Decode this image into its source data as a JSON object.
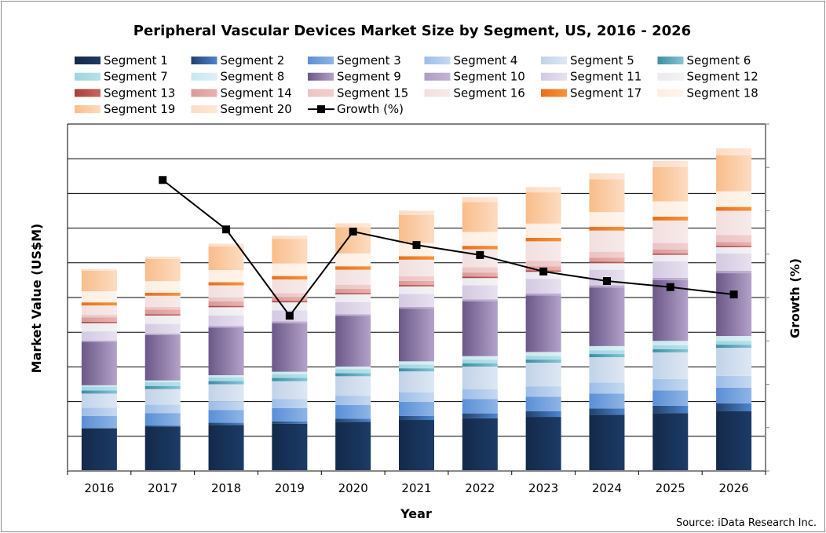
{
  "chart_data": {
    "type": "bar",
    "stacked": true,
    "title": "Peripheral Vascular Devices Market Size by Segment, US, 2016 - 2026",
    "xlabel": "Year",
    "ylabel": "Market Value (US$M)",
    "y2label": "Growth (%)",
    "source": "Source: iData Research Inc.",
    "ylim": [
      0,
      1000
    ],
    "y2lim": [
      0,
      8
    ],
    "y_tick_labels_shown": false,
    "grid": true,
    "legend_position": "top",
    "categories": [
      "2016",
      "2017",
      "2018",
      "2019",
      "2020",
      "2021",
      "2022",
      "2023",
      "2024",
      "2025",
      "2026"
    ],
    "series": [
      {
        "name": "Segment 1",
        "colors": [
          "#14294a",
          "#1c3b66"
        ],
        "values": [
          123,
          128,
          133,
          136,
          142,
          147,
          152,
          156,
          162,
          167,
          172
        ]
      },
      {
        "name": "Segment 2",
        "colors": [
          "#22416d",
          "#4d85cf"
        ],
        "values": [
          1,
          3,
          6,
          7,
          9,
          12,
          14,
          16,
          18,
          21,
          23
        ]
      },
      {
        "name": "Segment 3",
        "colors": [
          "#5a8fd6",
          "#8fb5e5"
        ],
        "values": [
          35,
          36,
          37,
          38,
          39,
          40,
          41,
          42,
          43,
          44,
          45
        ]
      },
      {
        "name": "Segment 4",
        "colors": [
          "#9cbde8",
          "#c6d9f1"
        ],
        "values": [
          23,
          24,
          25,
          26,
          27,
          28,
          29,
          30,
          32,
          33,
          34
        ]
      },
      {
        "name": "Segment 5",
        "colors": [
          "#c2d3e8",
          "#dee7f3"
        ],
        "values": [
          41,
          45,
          49,
          52,
          56,
          60,
          65,
          68,
          73,
          77,
          81
        ]
      },
      {
        "name": "Segment 6",
        "colors": [
          "#3b8da2",
          "#85c5d4"
        ],
        "values": [
          9,
          9,
          9,
          9,
          9,
          9,
          9,
          9,
          9,
          9,
          9
        ]
      },
      {
        "name": "Segment 7",
        "colors": [
          "#9fd4e0",
          "#b8e1e9"
        ],
        "values": [
          11,
          11,
          11,
          11,
          11,
          11,
          11,
          11,
          11,
          11,
          11
        ]
      },
      {
        "name": "Segment 8",
        "colors": [
          "#c8e8ef",
          "#dcf1f5"
        ],
        "values": [
          4,
          5,
          6,
          7,
          8,
          9,
          10,
          11,
          12,
          13,
          14
        ]
      },
      {
        "name": "Segment 9",
        "colors": [
          "#6b5887",
          "#b3a2c9"
        ],
        "values": [
          125,
          131,
          137,
          140,
          146,
          152,
          158,
          163,
          169,
          175,
          181
        ]
      },
      {
        "name": "Segment 10",
        "colors": [
          "#ad9cc5",
          "#c2b5d5"
        ],
        "values": [
          4,
          4,
          5,
          5,
          5,
          5,
          6,
          6,
          6,
          7,
          7
        ]
      },
      {
        "name": "Segment 11",
        "colors": [
          "#d4c9e1",
          "#e7e1ef"
        ],
        "values": [
          25,
          28,
          30,
          32,
          35,
          37,
          40,
          42,
          45,
          47,
          50
        ]
      },
      {
        "name": "Segment 12",
        "colors": [
          "#ebe9f1",
          "#f3f3f3"
        ],
        "values": [
          25,
          24,
          24,
          23,
          22,
          22,
          21,
          20,
          19,
          19,
          18
        ]
      },
      {
        "name": "Segment 13",
        "colors": [
          "#a8403f",
          "#c76461"
        ],
        "values": [
          4,
          4,
          4,
          4,
          4,
          4,
          4,
          4,
          4,
          4,
          4
        ]
      },
      {
        "name": "Segment 14",
        "colors": [
          "#d99a9a",
          "#e8b2b0"
        ],
        "values": [
          13,
          13,
          13,
          12,
          12,
          12,
          12,
          12,
          12,
          11,
          11
        ]
      },
      {
        "name": "Segment 15",
        "colors": [
          "#ebc3c3",
          "#f0d0cf"
        ],
        "values": [
          7,
          8,
          10,
          11,
          12,
          13,
          15,
          16,
          17,
          19,
          20
        ]
      },
      {
        "name": "Segment 16",
        "colors": [
          "#f2dfdf",
          "#f7eaea"
        ],
        "values": [
          27,
          32,
          36,
          39,
          43,
          48,
          52,
          56,
          61,
          65,
          70
        ]
      },
      {
        "name": "Segment 17",
        "colors": [
          "#e6701a",
          "#f7933a"
        ],
        "values": [
          9,
          9,
          9,
          10,
          10,
          10,
          10,
          10,
          11,
          11,
          11
        ]
      },
      {
        "name": "Segment 18",
        "colors": [
          "#fdeee2",
          "#fff5ec"
        ],
        "values": [
          32,
          33,
          35,
          36,
          37,
          38,
          40,
          41,
          42,
          44,
          45
        ]
      },
      {
        "name": "Segment 19",
        "colors": [
          "#f9bd8a",
          "#fcdcc2"
        ],
        "values": [
          59,
          64,
          68,
          71,
          76,
          81,
          86,
          90,
          95,
          99,
          104
        ]
      },
      {
        "name": "Segment 20",
        "colors": [
          "#fcdcc4",
          "#fee8d8"
        ],
        "values": [
          5,
          7,
          8,
          9,
          11,
          12,
          14,
          15,
          17,
          18,
          20
        ]
      }
    ],
    "line_series": {
      "name": "Growth (%)",
      "axis": "right",
      "color": "#000000",
      "values": [
        null,
        6.71,
        5.57,
        3.58,
        5.52,
        5.21,
        4.98,
        4.6,
        4.38,
        4.24,
        4.07
      ]
    }
  }
}
